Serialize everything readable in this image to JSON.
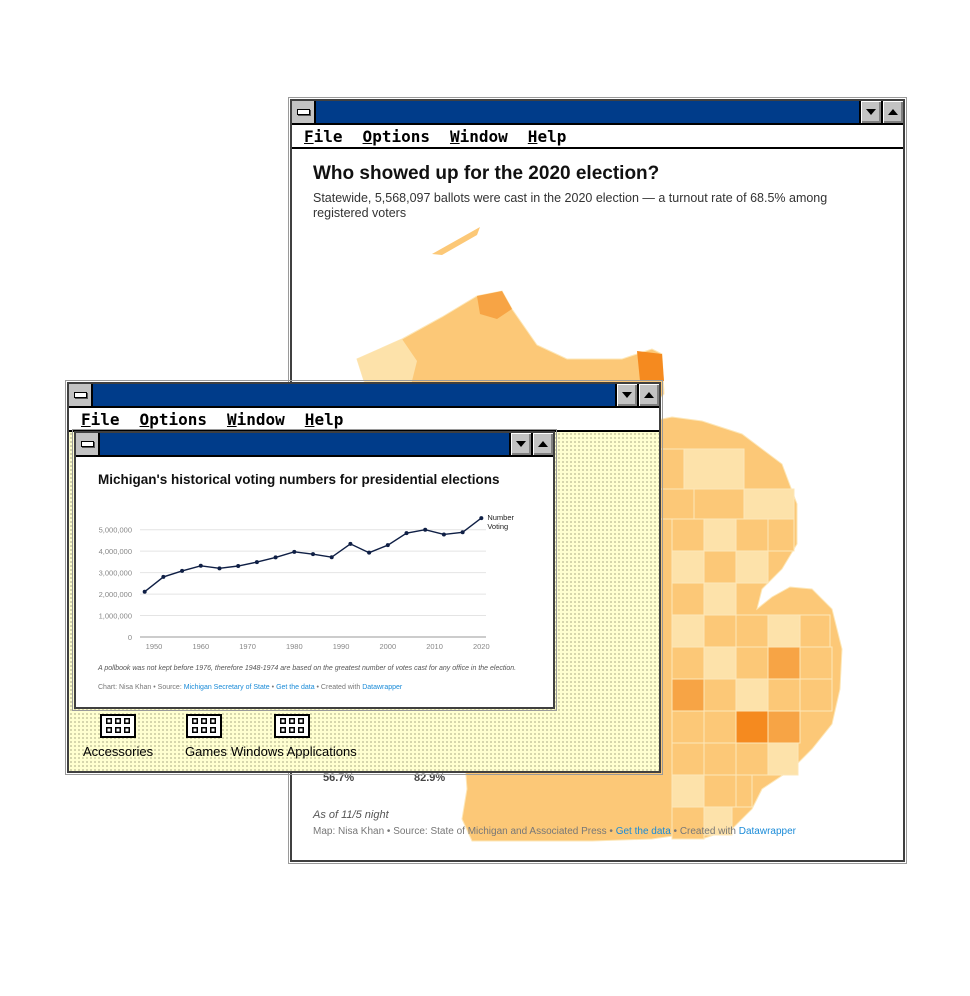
{
  "map_window": {
    "menu": [
      {
        "label": "File",
        "accel": "F",
        "rest": "ile"
      },
      {
        "label": "Options",
        "accel": "O",
        "rest": "ptions"
      },
      {
        "label": "Window",
        "accel": "W",
        "rest": "indow"
      },
      {
        "label": "Help",
        "accel": "H",
        "rest": "elp"
      }
    ],
    "title": "Who showed up for the 2020 election?",
    "subtitle": "Statewide, 5,568,097 ballots were cast in the 2020 election — a turnout rate of 68.5% among registered voters",
    "legend_min": "56.7%",
    "legend_max": "82.9%",
    "as_of": "As of 11/5 night",
    "credit_prefix": "Map: Nisa Khan • Source: State of Michigan and Associated Press • ",
    "credit_link1": "Get the data",
    "credit_mid": " • Created with ",
    "credit_link2": "Datawrapper",
    "colors": {
      "light": "#fde2aa",
      "mid": "#fcc877",
      "dark": "#f7a445",
      "darkest": "#f58a1f"
    }
  },
  "program_manager": {
    "menu": [
      {
        "label": "File",
        "accel": "F",
        "rest": "ile"
      },
      {
        "label": "Options",
        "accel": "O",
        "rest": "ptions"
      },
      {
        "label": "Window",
        "accel": "W",
        "rest": "indow"
      },
      {
        "label": "Help",
        "accel": "H",
        "rest": "elp"
      }
    ],
    "groups": [
      {
        "label": "Accessories"
      },
      {
        "label": "Games"
      },
      {
        "label": "Windows Applications"
      }
    ]
  },
  "chart_window": {
    "note": "A pollbook was not kept before 1976, therefore 1948-1974 are based on the greatest number of votes cast for any office in the election.",
    "credit_prefix": "Chart: Nisa Khan • Source: ",
    "credit_link1": "Michigan Secretary of State",
    "credit_sep": " • ",
    "credit_link2": "Get the data",
    "credit_mid": " • Created with ",
    "credit_link3": "Datawrapper"
  },
  "chart_data": {
    "type": "line",
    "title": "Michigan's historical voting numbers for presidential elections",
    "xlabel": "",
    "ylabel": "",
    "x": [
      1948,
      1952,
      1956,
      1960,
      1964,
      1968,
      1972,
      1976,
      1980,
      1984,
      1988,
      1992,
      1996,
      2000,
      2004,
      2008,
      2012,
      2016,
      2020
    ],
    "series": [
      {
        "name": "Number Voting",
        "values": [
          2110000,
          2800000,
          3080000,
          3320000,
          3200000,
          3310000,
          3490000,
          3710000,
          3970000,
          3860000,
          3720000,
          4340000,
          3930000,
          4280000,
          4840000,
          5000000,
          4780000,
          4880000,
          5540000
        ]
      }
    ],
    "xlim": [
      1947,
      2021
    ],
    "ylim": [
      0,
      5500000
    ],
    "x_ticks": [
      1950,
      1960,
      1970,
      1980,
      1990,
      2000,
      2010,
      2020
    ],
    "y_ticks": [
      0,
      1000000,
      2000000,
      3000000,
      4000000,
      5000000
    ],
    "y_tick_labels": [
      "0",
      "1,000,000",
      "2,000,000",
      "3,000,000",
      "4,000,000",
      "5,000,000"
    ],
    "legend_lines": [
      "Number",
      "Voting"
    ],
    "grid": true,
    "line_color": "#0f1f45"
  }
}
